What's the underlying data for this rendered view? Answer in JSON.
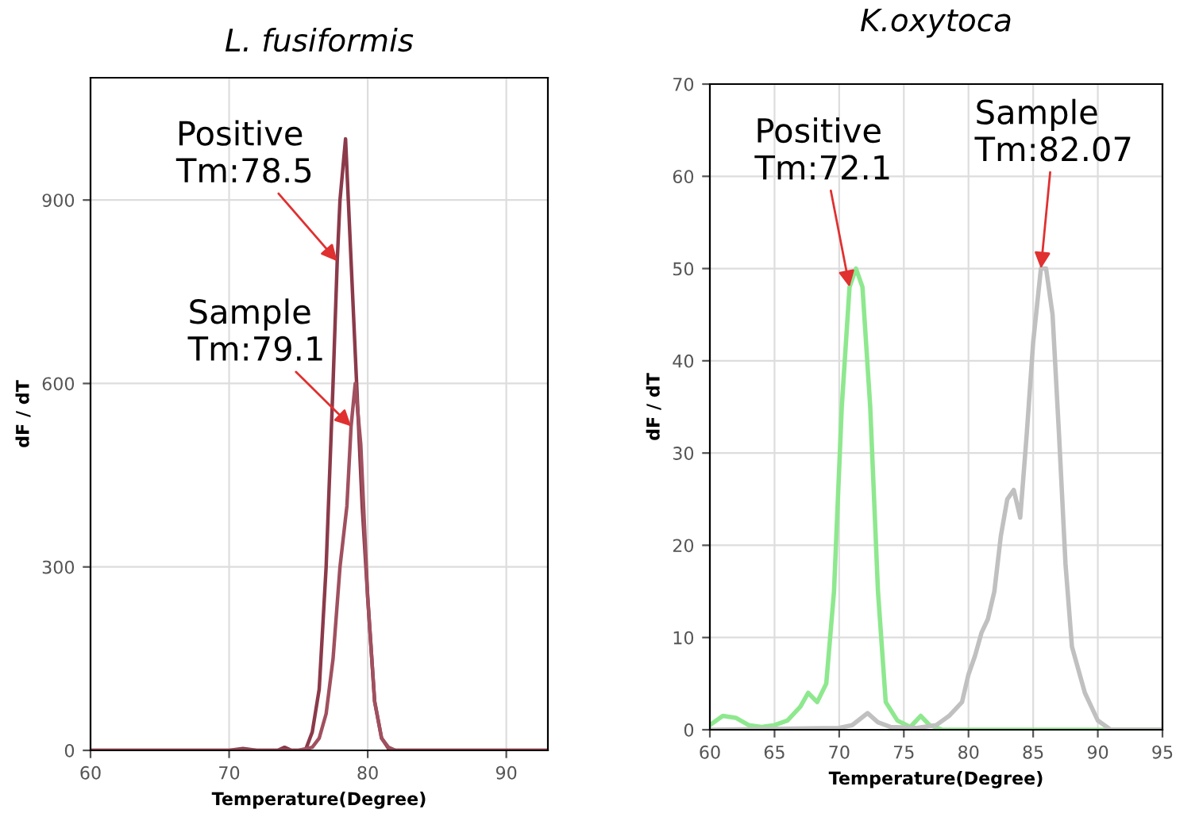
{
  "chart_data": [
    {
      "type": "line",
      "title": "L. fusiformis",
      "xlabel": "Temperature(Degree)",
      "ylabel": "dF / dT",
      "xlim": [
        60,
        93
      ],
      "xticks": [
        60,
        70,
        80,
        90
      ],
      "ylim": [
        0,
        1100
      ],
      "yticks": [
        0,
        300,
        600,
        900
      ],
      "grid": true,
      "series": [
        {
          "color": "#8b3a4a",
          "x": [
            60,
            70,
            71,
            72,
            73.5,
            74,
            74.5,
            75.5,
            76,
            76.5,
            77,
            77.5,
            77.8,
            78,
            78.4,
            78.8,
            79.2,
            79.6,
            80,
            80.5,
            81,
            81.5,
            82,
            85,
            93
          ],
          "values": [
            0,
            0,
            3,
            0,
            0,
            5,
            0,
            0,
            30,
            100,
            300,
            600,
            800,
            900,
            1000,
            800,
            600,
            400,
            250,
            80,
            20,
            3,
            0,
            0,
            0
          ]
        },
        {
          "color": "#a0505f",
          "x": [
            60,
            75,
            76,
            76.5,
            77,
            77.5,
            78,
            78.5,
            78.8,
            79.1,
            79.5,
            80,
            80.5,
            81,
            81.5,
            82,
            85,
            93
          ],
          "values": [
            0,
            0,
            5,
            20,
            60,
            150,
            300,
            400,
            530,
            600,
            500,
            250,
            80,
            20,
            5,
            0,
            0,
            0
          ]
        }
      ],
      "annotations": [
        {
          "text": "Positive\nTm:78.5",
          "x": 77.8,
          "y": 800
        },
        {
          "text": "Sample\nTm:79.1",
          "x": 78.8,
          "y": 530
        }
      ]
    },
    {
      "type": "line",
      "title": "K.oxytoca",
      "xlabel": "Temperature(Degree)",
      "ylabel": "dF / dT",
      "xlim": [
        60,
        95
      ],
      "xticks": [
        60,
        65,
        70,
        75,
        80,
        85,
        90,
        95
      ],
      "ylim": [
        0,
        70
      ],
      "yticks": [
        0,
        10,
        20,
        30,
        40,
        50,
        60,
        70
      ],
      "grid": true,
      "series": [
        {
          "color": "#8ee88e",
          "x": [
            60,
            61,
            62,
            63,
            64,
            65,
            66,
            67,
            67.6,
            68.3,
            69,
            69.6,
            70.2,
            70.8,
            71.3,
            71.8,
            72.4,
            73,
            73.6,
            74.5,
            75.5,
            76.3,
            77,
            78,
            95
          ],
          "values": [
            0.5,
            1.5,
            1.3,
            0.5,
            0.3,
            0.5,
            1,
            2.5,
            4,
            3,
            5,
            15,
            35,
            48,
            50,
            48,
            35,
            15,
            3,
            1,
            0.3,
            1.5,
            0.5,
            0,
            0
          ]
        },
        {
          "color": "#c0c0c0",
          "x": [
            60,
            70,
            71,
            72.2,
            73,
            74,
            76,
            77.5,
            78.5,
            79.5,
            80,
            80.5,
            81,
            81.5,
            82,
            82.5,
            83,
            83.5,
            84,
            84.5,
            85,
            85.6,
            86,
            86.5,
            87,
            87.5,
            88,
            89,
            90,
            91,
            95
          ],
          "values": [
            0,
            0.2,
            0.5,
            1.8,
            0.8,
            0.3,
            0.2,
            0.5,
            1.5,
            3,
            6,
            8,
            10.5,
            12,
            15,
            21,
            25,
            26,
            23,
            32,
            42,
            50,
            50,
            45,
            32,
            18,
            9,
            4,
            1,
            0,
            0
          ]
        }
      ],
      "annotations": [
        {
          "text": "Positive\nTm:72.1",
          "x": 70.8,
          "y": 48
        },
        {
          "text": "Sample\nTm:82.07",
          "x": 85.6,
          "y": 50
        }
      ]
    }
  ]
}
